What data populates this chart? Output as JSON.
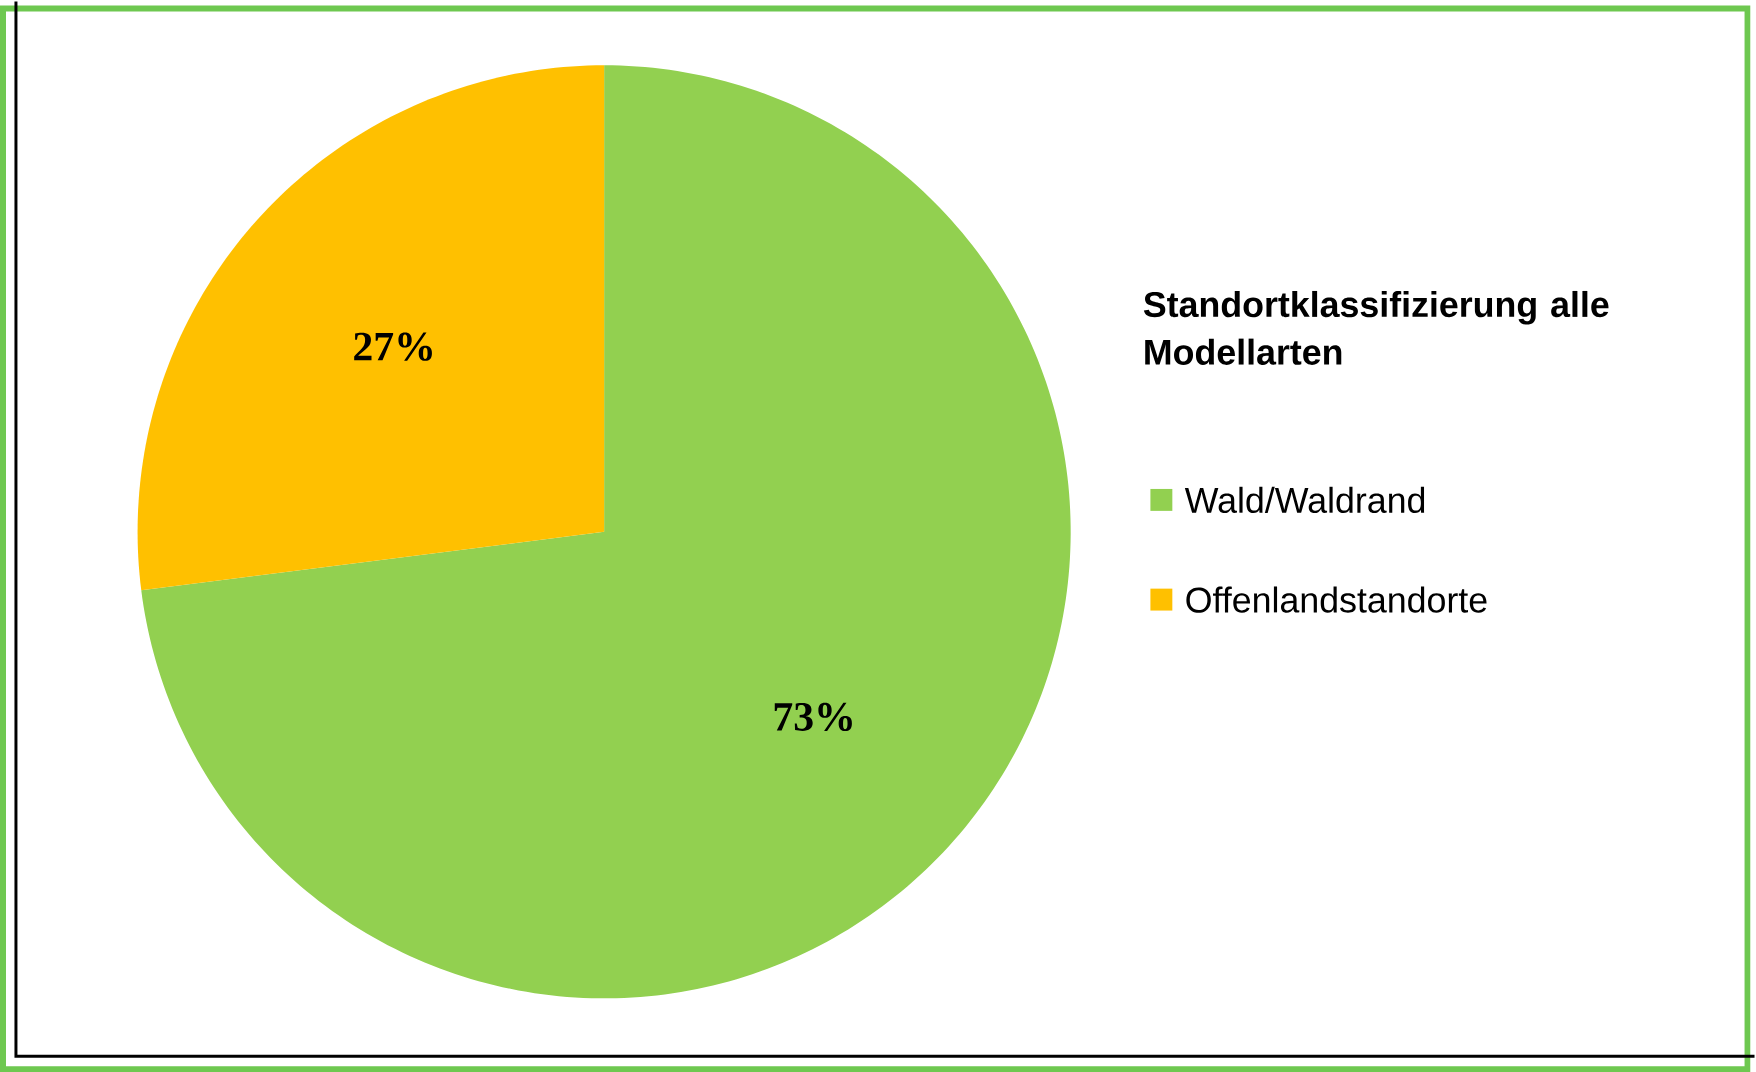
{
  "chart_data": {
    "type": "pie",
    "legend_title": "Standortklassifizierung alle Modellarten",
    "legend": "right",
    "categories": [
      "Wald/Waldrand",
      "Offenlandstandorte"
    ],
    "values": [
      73,
      27
    ],
    "colors": [
      "#92d050",
      "#ffc000"
    ],
    "value_labels": [
      "73%",
      "27%"
    ]
  }
}
